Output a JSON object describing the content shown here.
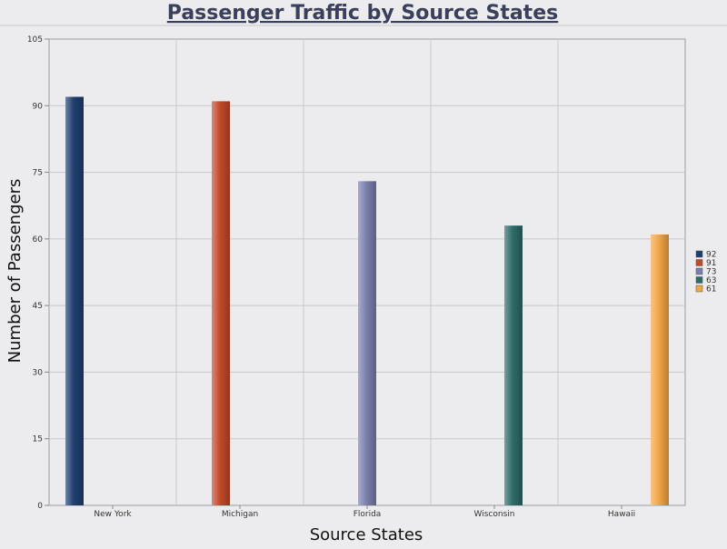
{
  "chart_data": {
    "type": "bar",
    "title": "Passenger Traffic by Source States",
    "xlabel": "Source States",
    "ylabel": "Number of Passengers",
    "categories": [
      "New York",
      "Michigan",
      "Florida",
      "Wisconsin",
      "Hawaii"
    ],
    "values": [
      92,
      91,
      73,
      63,
      61
    ],
    "colors": [
      "#1f3f6e",
      "#c2492a",
      "#7b7fad",
      "#2e6b68",
      "#f2a546"
    ],
    "ylim": [
      0,
      105
    ],
    "yticks": [
      0,
      15,
      30,
      45,
      60,
      75,
      90,
      105
    ],
    "grid": true,
    "legend": {
      "position": "right",
      "entries": [
        "92",
        "91",
        "73",
        "63",
        "61"
      ]
    }
  }
}
